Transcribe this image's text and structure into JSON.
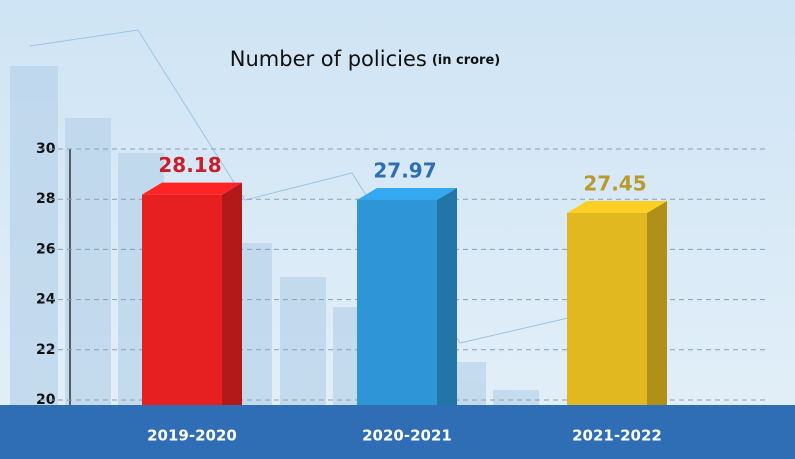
{
  "chart_data": {
    "type": "bar3d",
    "title": "Number of policies",
    "unit": "(in crore)",
    "categories": [
      "2019-2020",
      "2020-2021",
      "2021-2022"
    ],
    "values": [
      28.18,
      27.97,
      27.45
    ],
    "colors": [
      "#e62020",
      "#2e96d6",
      "#e2b820"
    ],
    "label_colors": [
      "#c8202a",
      "#2f6db5",
      "#b89a30"
    ],
    "ylim": [
      19.8,
      30
    ],
    "yticks": [
      20,
      22,
      24,
      26,
      28,
      30
    ],
    "grid": true
  }
}
